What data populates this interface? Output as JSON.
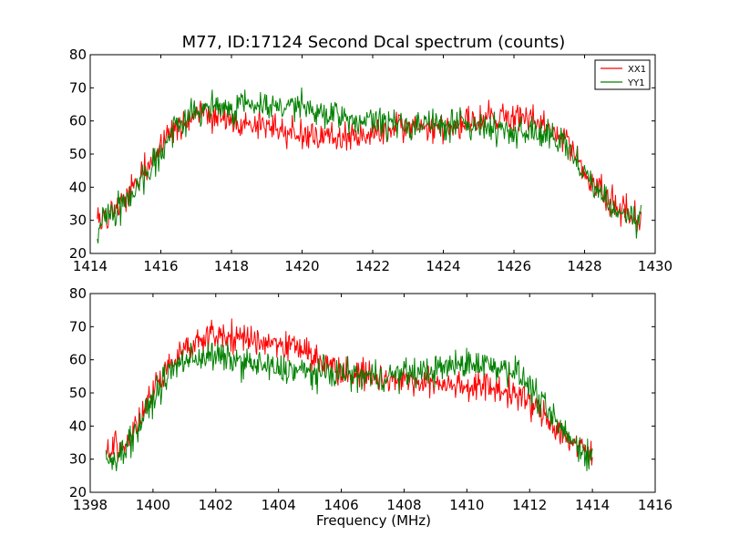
{
  "title": "M77, ID:17124 Second Dcal spectrum (counts)",
  "xlabel": "Frequency (MHz)",
  "colors": {
    "XX1": "#ff0000",
    "YY1": "#008000"
  },
  "legend": [
    "XX1",
    "YY1"
  ],
  "chart_data": [
    {
      "type": "line",
      "title": "M77, ID:17124 Second Dcal spectrum (counts)",
      "xlabel": "",
      "ylabel": "",
      "xlim": [
        1414,
        1430
      ],
      "ylim": [
        20,
        80
      ],
      "xticks": [
        1414,
        1416,
        1418,
        1420,
        1422,
        1424,
        1426,
        1428,
        1430
      ],
      "yticks": [
        20,
        30,
        40,
        50,
        60,
        70,
        80
      ],
      "legend_position": "top-right",
      "grid": false,
      "series": [
        {
          "name": "XX1",
          "color": "#ff0000",
          "x": [
            1414.2,
            1414.5,
            1415.0,
            1415.5,
            1416.0,
            1416.5,
            1417.0,
            1417.5,
            1418.0,
            1418.5,
            1419.0,
            1419.5,
            1420.0,
            1420.5,
            1421.0,
            1421.5,
            1422.0,
            1422.5,
            1423.0,
            1423.5,
            1424.0,
            1424.5,
            1425.0,
            1425.5,
            1426.0,
            1426.5,
            1427.0,
            1427.5,
            1428.0,
            1428.5,
            1429.0,
            1429.6
          ],
          "y": [
            30,
            31,
            36,
            44,
            52,
            60,
            62,
            61,
            60,
            59,
            58,
            57,
            56,
            56,
            55,
            55,
            56,
            57,
            58,
            58,
            58,
            59,
            60,
            61,
            61,
            60,
            58,
            54,
            45,
            38,
            33,
            30
          ]
        },
        {
          "name": "YY1",
          "color": "#008000",
          "x": [
            1414.2,
            1414.5,
            1415.0,
            1415.5,
            1416.0,
            1416.5,
            1417.0,
            1417.5,
            1418.0,
            1418.5,
            1419.0,
            1419.5,
            1420.0,
            1420.5,
            1421.0,
            1421.5,
            1422.0,
            1422.5,
            1423.0,
            1423.5,
            1424.0,
            1424.5,
            1425.0,
            1425.5,
            1426.0,
            1426.5,
            1427.0,
            1427.5,
            1428.0,
            1428.5,
            1429.0,
            1429.6
          ],
          "y": [
            29,
            31,
            36,
            43,
            51,
            59,
            63,
            64,
            64,
            65,
            65,
            65,
            64,
            62,
            61,
            60,
            60,
            59,
            59,
            59,
            59,
            59,
            58,
            58,
            57,
            57,
            55,
            52,
            45,
            37,
            32,
            30
          ]
        }
      ]
    },
    {
      "type": "line",
      "title": "",
      "xlabel": "Frequency (MHz)",
      "ylabel": "",
      "xlim": [
        1398,
        1416
      ],
      "ylim": [
        20,
        80
      ],
      "xticks": [
        1398,
        1400,
        1402,
        1404,
        1406,
        1408,
        1410,
        1412,
        1414,
        1416
      ],
      "yticks": [
        20,
        30,
        40,
        50,
        60,
        70,
        80
      ],
      "grid": false,
      "series": [
        {
          "name": "XX1",
          "color": "#ff0000",
          "x": [
            1398.5,
            1399.0,
            1399.5,
            1400.0,
            1400.5,
            1401.0,
            1401.5,
            1402.0,
            1402.5,
            1403.0,
            1403.5,
            1404.0,
            1404.5,
            1405.0,
            1405.5,
            1406.0,
            1406.5,
            1407.0,
            1407.5,
            1408.0,
            1408.5,
            1409.0,
            1409.5,
            1410.0,
            1410.5,
            1411.0,
            1411.5,
            1412.0,
            1412.5,
            1413.0,
            1413.5,
            1414.0
          ],
          "y": [
            32,
            34,
            40,
            50,
            58,
            64,
            66,
            67,
            67,
            66,
            66,
            65,
            64,
            62,
            59,
            57,
            56,
            55,
            54,
            54,
            53,
            53,
            53,
            52,
            52,
            51,
            50,
            47,
            43,
            38,
            34,
            31
          ]
        },
        {
          "name": "YY1",
          "color": "#008000",
          "x": [
            1398.5,
            1399.0,
            1399.5,
            1400.0,
            1400.5,
            1401.0,
            1401.5,
            1402.0,
            1402.5,
            1403.0,
            1403.5,
            1404.0,
            1404.5,
            1405.0,
            1405.5,
            1406.0,
            1406.5,
            1407.0,
            1407.5,
            1408.0,
            1408.5,
            1409.0,
            1409.5,
            1410.0,
            1410.5,
            1411.0,
            1411.5,
            1412.0,
            1412.5,
            1413.0,
            1413.5,
            1414.0
          ],
          "y": [
            29,
            32,
            39,
            48,
            56,
            60,
            61,
            61,
            60,
            59,
            58,
            57,
            57,
            56,
            56,
            56,
            55,
            55,
            55,
            56,
            56,
            57,
            58,
            59,
            59,
            58,
            57,
            52,
            45,
            39,
            34,
            31
          ]
        }
      ]
    }
  ]
}
